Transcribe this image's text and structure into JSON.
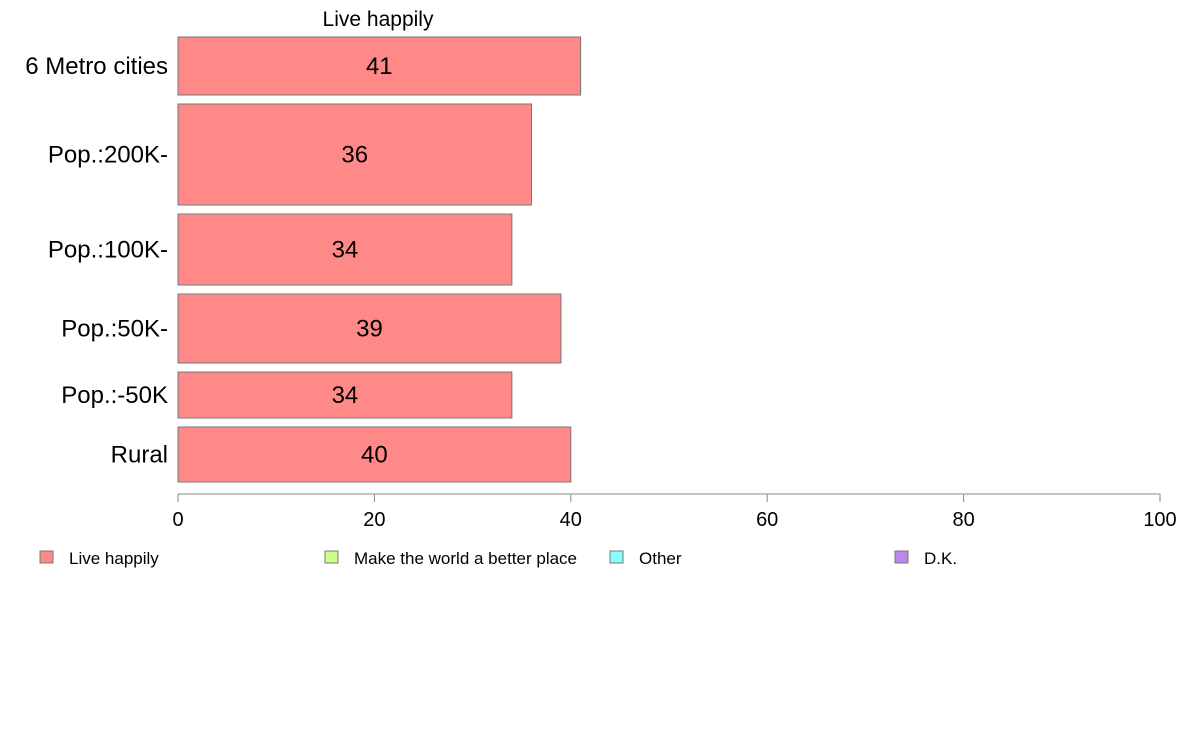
{
  "chart_data": {
    "type": "bar",
    "orientation": "horizontal",
    "title": "Live happily",
    "categories": [
      "6 Metro cities",
      "Pop.:200K-",
      "Pop.:100K-",
      "Pop.:50K-",
      "Pop.:-50K",
      "Rural"
    ],
    "series": [
      {
        "name": "Live happily",
        "color": "#ff8888",
        "values": [
          41,
          36,
          34,
          39,
          34,
          40
        ]
      }
    ],
    "xlim": [
      0,
      100
    ],
    "xticks": [
      0,
      20,
      40,
      60,
      80,
      100
    ],
    "grid": false,
    "legend": {
      "placement": "bottom",
      "items": [
        {
          "label": "Live happily",
          "color": "#ff8888"
        },
        {
          "label": "Make the world a better place",
          "color": "#ccff88"
        },
        {
          "label": "Other",
          "color": "#88ffff"
        },
        {
          "label": "D.K.",
          "color": "#bb88ee"
        }
      ]
    }
  }
}
